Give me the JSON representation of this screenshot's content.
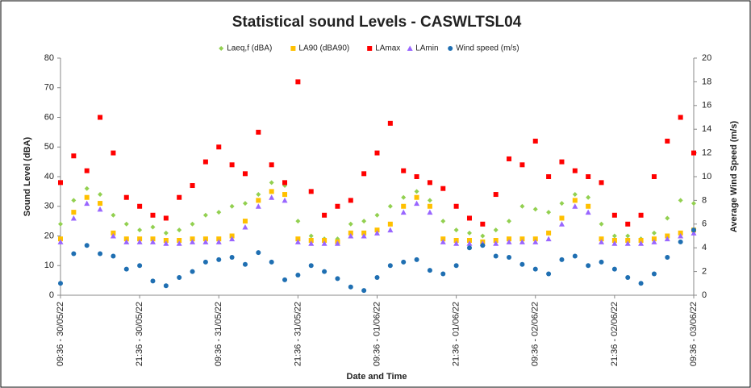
{
  "chart_data": {
    "type": "scatter",
    "title": "Statistical sound Levels - CASWLTSL04",
    "xlabel": "Date and Time",
    "ylabel": "Sound Level (dBA)",
    "y2label": "Average Wind Speed (m/s)",
    "x": [
      "09:36 - 30/05/22",
      "11:36 - 30/05/22",
      "13:36 - 30/05/22",
      "15:36 - 30/05/22",
      "17:36 - 30/05/22",
      "19:36 - 30/05/22",
      "21:36 - 30/05/22",
      "23:36 - 30/05/22",
      "01:36 - 31/05/22",
      "03:36 - 31/05/22",
      "05:36 - 31/05/22",
      "07:36 - 31/05/22",
      "09:36 - 31/05/22",
      "11:36 - 31/05/22",
      "13:36 - 31/05/22",
      "15:36 - 31/05/22",
      "17:36 - 31/05/22",
      "19:36 - 31/05/22",
      "21:36 - 31/05/22",
      "23:36 - 31/05/22",
      "01:36 - 01/06/22",
      "03:36 - 01/06/22",
      "05:36 - 01/06/22",
      "07:36 - 01/06/22",
      "09:36 - 01/06/22",
      "11:36 - 01/06/22",
      "13:36 - 01/06/22",
      "15:36 - 01/06/22",
      "17:36 - 01/06/22",
      "19:36 - 01/06/22",
      "21:36 - 01/06/22",
      "23:36 - 01/06/22",
      "01:36 - 02/06/22",
      "03:36 - 02/06/22",
      "05:36 - 02/06/22",
      "07:36 - 02/06/22",
      "09:36 - 02/06/22",
      "11:36 - 02/06/22",
      "13:36 - 02/06/22",
      "15:36 - 02/06/22",
      "17:36 - 02/06/22",
      "19:36 - 02/06/22",
      "21:36 - 02/06/22",
      "23:36 - 02/06/22",
      "01:36 - 03/06/22",
      "03:36 - 03/06/22",
      "05:36 - 03/06/22",
      "07:36 - 03/06/22",
      "09:36 - 03/06/22"
    ],
    "series": [
      {
        "name": "Laeq,f (dBA)",
        "color": "#92d050",
        "marker": "diamond",
        "values": [
          24,
          32,
          36,
          34,
          27,
          24,
          22,
          23,
          21,
          22,
          24,
          27,
          28,
          30,
          31,
          34,
          38,
          37,
          25,
          20,
          19,
          19,
          24,
          25,
          27,
          30,
          33,
          35,
          32,
          25,
          22,
          21,
          20,
          22,
          25,
          30,
          29,
          28,
          31,
          34,
          33,
          24,
          20,
          20,
          19,
          21,
          26,
          32,
          31
        ]
      },
      {
        "name": "LA90  (dBA90)",
        "color": "#ffc000",
        "marker": "square",
        "values": [
          19,
          28,
          33,
          31,
          21,
          19,
          19,
          19,
          18.5,
          18.5,
          19,
          19,
          19,
          20,
          25,
          32,
          35,
          34,
          19,
          18.5,
          18.5,
          18,
          21,
          21,
          22,
          24,
          30,
          33,
          30,
          19,
          18.5,
          18.5,
          18,
          18.5,
          19,
          19,
          19,
          21,
          26,
          32,
          30,
          19,
          18.5,
          18.5,
          18.5,
          19,
          20,
          21,
          22
        ]
      },
      {
        "name": "LAmax",
        "color": "#ff0000",
        "marker": "square",
        "values": [
          38,
          47,
          42,
          60,
          48,
          33,
          30,
          27,
          26,
          33,
          37,
          45,
          50,
          44,
          41,
          55,
          44,
          38,
          72,
          35,
          27,
          30,
          32,
          41,
          48,
          58,
          42,
          40,
          38,
          36,
          30,
          26,
          24,
          34,
          46,
          44,
          52,
          40,
          45,
          42,
          40,
          38,
          27,
          24,
          27,
          40,
          52,
          60,
          48
        ]
      },
      {
        "name": "LAmin",
        "color": "#9966ff",
        "marker": "triangle",
        "values": [
          18,
          26,
          31,
          29,
          20,
          18,
          18,
          18,
          17.5,
          17.5,
          18,
          18,
          18,
          19,
          23,
          30,
          33,
          32,
          18,
          17.5,
          17.5,
          17.5,
          20,
          20,
          21,
          22,
          28,
          31,
          28,
          18,
          17.5,
          17.5,
          17.5,
          17.5,
          18,
          18,
          18,
          19,
          24,
          30,
          28,
          18,
          17.5,
          17.5,
          17.5,
          18,
          19,
          20,
          21
        ]
      },
      {
        "name": "Wind speed (m/s)",
        "color": "#1f6fb2",
        "marker": "circle",
        "axis": "y2",
        "values": [
          1,
          3.5,
          4.2,
          3.5,
          3.3,
          2.2,
          2.5,
          1.2,
          0.8,
          1.5,
          2,
          2.8,
          3,
          3.2,
          2.6,
          3.6,
          2.8,
          1.3,
          1.7,
          2.5,
          2,
          1.4,
          0.7,
          0.4,
          1.5,
          2.5,
          2.8,
          3,
          2.1,
          1.8,
          2.5,
          4,
          4.2,
          3.3,
          3.2,
          2.6,
          2.2,
          1.8,
          3,
          3.3,
          2.5,
          2.8,
          2.2,
          1.5,
          1,
          1.8,
          3.2,
          4.5,
          5.5
        ]
      }
    ],
    "xlim": [
      "09:36 - 30/05/22",
      "09:36 - 03/06/22"
    ],
    "xticks": [
      "09:36 - 30/05/22",
      "21:36 - 30/05/22",
      "09:36 - 31/05/22",
      "21:36 - 31/05/22",
      "09:36 - 01/06/22",
      "21:36 - 01/06/22",
      "09:36 - 02/06/22",
      "21:36 - 02/06/22",
      "09:36 - 03/06/22"
    ],
    "ylim": [
      0,
      80
    ],
    "yticks": [
      0,
      10,
      20,
      30,
      40,
      50,
      60,
      70,
      80
    ],
    "y2lim": [
      0,
      20
    ],
    "y2ticks": [
      0,
      2,
      4,
      6,
      8,
      10,
      12,
      14,
      16,
      18,
      20
    ],
    "grid": false,
    "legend": "top"
  }
}
